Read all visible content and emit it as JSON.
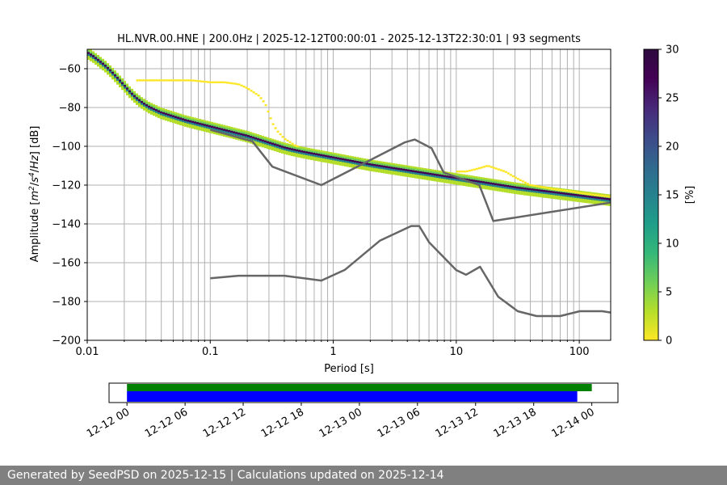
{
  "chart_data": [
    {
      "type": "heatmap",
      "title": "HL.NVR.00.HNE | 200.0Hz | 2025-12-12T00:00:01 - 2025-12-13T22:30:01 | 93 segments",
      "xlabel": "Period [s]",
      "ylabel_parts": [
        "Amplitude [",
        "m",
        "2",
        "/",
        "s",
        "4",
        "/",
        "Hz",
        "] [dB]"
      ],
      "x_scale": "log",
      "xlim": [
        0.01,
        180
      ],
      "ylim": [
        -200,
        -50
      ],
      "x_ticks": [
        {
          "value": 0.01,
          "label": "0.01"
        },
        {
          "value": 0.1,
          "label": "0.1"
        },
        {
          "value": 1,
          "label": "1"
        },
        {
          "value": 10,
          "label": "10"
        },
        {
          "value": 100,
          "label": "100"
        }
      ],
      "y_ticks": [
        {
          "value": -60,
          "label": "−60"
        },
        {
          "value": -80,
          "label": "−80"
        },
        {
          "value": -100,
          "label": "−100"
        },
        {
          "value": -120,
          "label": "−120"
        },
        {
          "value": -140,
          "label": "−140"
        },
        {
          "value": -160,
          "label": "−160"
        },
        {
          "value": -180,
          "label": "−180"
        },
        {
          "value": -200,
          "label": "−200"
        }
      ],
      "grid": true,
      "colorbar": {
        "label": "[%]",
        "range": [
          0,
          30
        ],
        "ticks": [
          {
            "value": 0,
            "label": "0"
          },
          {
            "value": 5,
            "label": "5"
          },
          {
            "value": 10,
            "label": "10"
          },
          {
            "value": 15,
            "label": "15"
          },
          {
            "value": 20,
            "label": "20"
          },
          {
            "value": 25,
            "label": "25"
          },
          {
            "value": 30,
            "label": "30"
          }
        ],
        "colors": [
          "#fde725",
          "#b5de2b",
          "#6ece58",
          "#35b779",
          "#1f9e89",
          "#26828e",
          "#31688e",
          "#3e4989",
          "#482878",
          "#440154",
          "#2d0a3e"
        ]
      },
      "psd_mode": {
        "period": [
          0.01,
          0.0112,
          0.0126,
          0.0141,
          0.0158,
          0.0178,
          0.02,
          0.0224,
          0.0251,
          0.0282,
          0.0316,
          0.0355,
          0.0398,
          0.0447,
          0.0501,
          0.0562,
          0.0631,
          0.0708,
          0.0794,
          0.0891,
          0.1,
          0.1122,
          0.1259,
          0.1413,
          0.1585,
          0.1778,
          0.1995,
          0.2239,
          0.2512,
          0.2818,
          0.3162,
          0.3548,
          0.3981,
          0.4467,
          0.5012,
          0.5623,
          0.631,
          0.7079,
          0.7943,
          0.8913,
          1.0,
          1.122,
          1.259,
          1.413,
          1.585,
          1.778,
          1.995,
          2.239,
          2.512,
          2.818,
          3.162,
          3.548,
          3.981,
          4.467,
          5.012,
          5.623,
          6.31,
          7.079,
          7.943,
          8.913,
          10.0,
          11.22,
          12.59,
          14.13,
          15.85,
          17.78,
          19.95,
          22.39,
          25.12,
          28.18,
          31.62,
          35.48,
          39.81,
          44.67,
          50.12,
          56.23,
          63.1,
          70.79,
          79.43,
          89.13,
          100.0,
          112.2,
          125.9,
          141.3,
          158.5,
          177.8
        ],
        "amplitude_db": [
          -52.0,
          -54.0,
          -56.5,
          -59.0,
          -62.0,
          -65.5,
          -69.0,
          -72.5,
          -75.5,
          -78.0,
          -80.0,
          -81.5,
          -83.0,
          -84.0,
          -85.0,
          -86.0,
          -87.0,
          -87.8,
          -88.6,
          -89.4,
          -90.2,
          -91.0,
          -91.8,
          -92.6,
          -93.4,
          -94.2,
          -95.0,
          -96.0,
          -97.0,
          -98.0,
          -99.0,
          -100.0,
          -101.0,
          -101.8,
          -102.5,
          -103.2,
          -103.8,
          -104.4,
          -105.0,
          -105.6,
          -106.2,
          -106.8,
          -107.4,
          -108.0,
          -108.6,
          -109.2,
          -109.8,
          -110.3,
          -110.8,
          -111.3,
          -111.8,
          -112.3,
          -112.8,
          -113.3,
          -113.8,
          -114.3,
          -114.8,
          -115.3,
          -115.8,
          -116.3,
          -116.8,
          -117.3,
          -117.8,
          -118.3,
          -118.8,
          -119.3,
          -119.8,
          -120.3,
          -120.8,
          -121.3,
          -121.8,
          -122.2,
          -122.6,
          -123.0,
          -123.4,
          -123.8,
          -124.2,
          -124.6,
          -125.0,
          -125.4,
          -125.8,
          -126.2,
          -126.6,
          -127.0,
          -127.4,
          -127.8
        ]
      },
      "psd_low_probability_branches": [
        {
          "period": [
            0.025,
            0.03,
            0.04,
            0.05,
            0.07,
            0.1,
            0.13,
            0.17,
            0.2,
            0.25,
            0.28,
            0.3,
            0.32,
            0.35,
            0.4,
            0.45,
            0.5
          ],
          "amplitude_db": [
            -66,
            -66,
            -66,
            -66,
            -66,
            -67,
            -67,
            -68,
            -70,
            -74,
            -78,
            -83,
            -88,
            -92,
            -96,
            -98,
            -100
          ]
        },
        {
          "period": [
            10,
            12,
            14,
            16,
            18,
            20,
            25,
            30,
            40,
            60,
            80,
            100,
            130,
            180
          ],
          "amplitude_db": [
            -113,
            -113,
            -112,
            -111,
            -110,
            -111,
            -113,
            -116,
            -120,
            -122,
            -123,
            -124,
            -125,
            -126
          ]
        }
      ],
      "noise_model_high": {
        "period": [
          0.1,
          0.22,
          0.32,
          0.8,
          3.8,
          4.6,
          6.3,
          7.9,
          15.4,
          20,
          180
        ],
        "amplitude_db": [
          -91.5,
          -97.4,
          -110.5,
          -120.0,
          -98.0,
          -96.5,
          -101.0,
          -113.5,
          -120.0,
          -138.5,
          -129.0
        ]
      },
      "noise_model_low": {
        "period": [
          0.1,
          0.17,
          0.4,
          0.8,
          1.24,
          2.4,
          4.3,
          5.0,
          6.0,
          10.0,
          12.0,
          15.6,
          21.9,
          31.6,
          45.0,
          70.0,
          101.0,
          154.0,
          180.0
        ],
        "amplitude_db": [
          -168.0,
          -166.7,
          -166.7,
          -169.2,
          -163.7,
          -148.6,
          -141.1,
          -141.1,
          -149.4,
          -163.8,
          -166.2,
          -162.1,
          -177.5,
          -185.0,
          -187.5,
          -187.5,
          -185.0,
          -185.0,
          -185.7
        ]
      }
    },
    {
      "type": "timeline",
      "x_range": [
        "2025-12-11T22:09",
        "2025-12-14T02:42"
      ],
      "tick_labels": [
        "12-12 00",
        "12-12 06",
        "12-12 12",
        "12-12 18",
        "12-13 00",
        "12-13 06",
        "12-13 12",
        "12-13 18",
        "12-14 00"
      ],
      "bars": [
        {
          "start": "2025-12-12T00:00",
          "end": "2025-12-14T00:00",
          "color": "#008000"
        },
        {
          "start": "2025-12-12T00:00",
          "end": "2025-12-13T22:30",
          "color": "#0000ff"
        }
      ]
    }
  ],
  "footer": {
    "text": "Generated by SeedPSD on 2025-12-15 | Calculations updated on 2025-12-14"
  }
}
